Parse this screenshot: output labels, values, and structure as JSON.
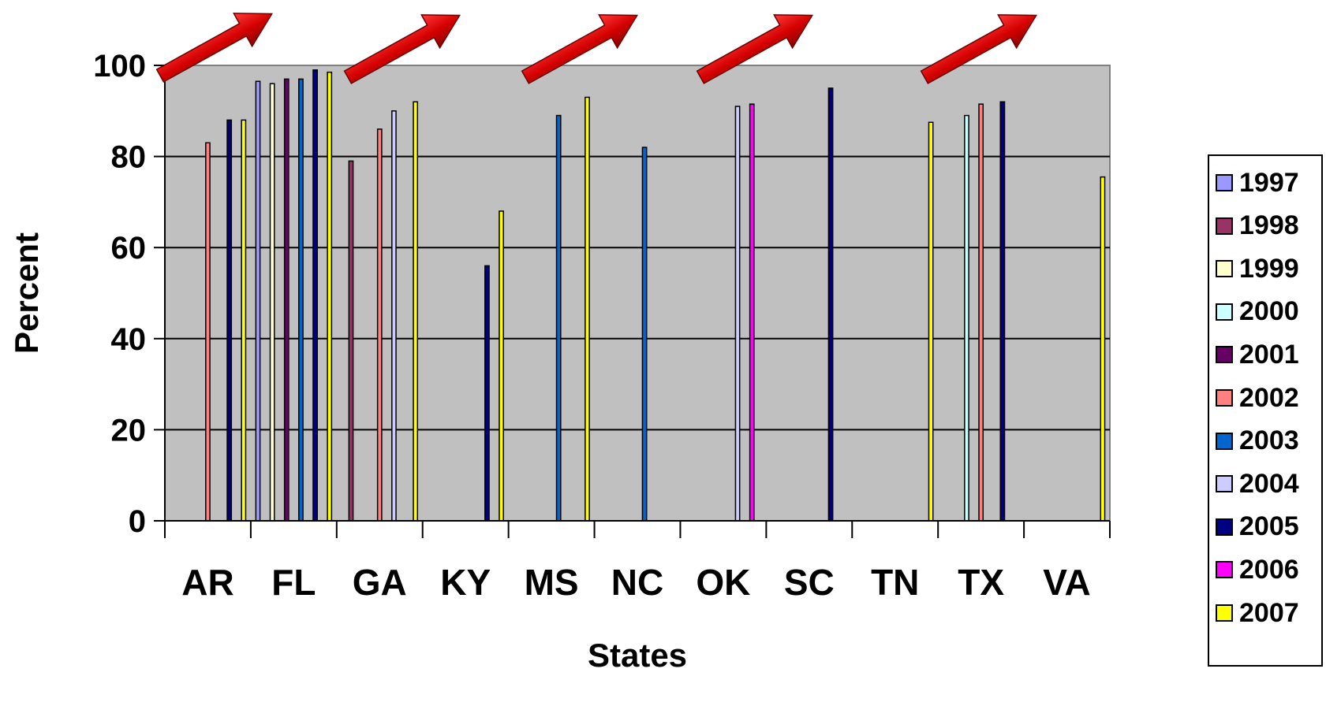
{
  "chart_data": {
    "type": "bar",
    "title": "",
    "xlabel": "States",
    "ylabel": "Percent",
    "ylim": [
      0,
      100
    ],
    "yticks": [
      "0",
      "20",
      "40",
      "60",
      "80",
      "100"
    ],
    "grid": true,
    "legend_position": "right",
    "categories": [
      "AR",
      "FL",
      "GA",
      "KY",
      "MS",
      "NC",
      "OK",
      "SC",
      "TN",
      "TX",
      "VA"
    ],
    "series": [
      {
        "name": "1997",
        "color": "#9999FF",
        "values": [
          null,
          96.5,
          null,
          null,
          null,
          null,
          null,
          null,
          null,
          null,
          null
        ]
      },
      {
        "name": "1998",
        "color": "#993366",
        "values": [
          null,
          null,
          79,
          null,
          null,
          null,
          null,
          null,
          null,
          null,
          null
        ]
      },
      {
        "name": "1999",
        "color": "#FFFFCC",
        "values": [
          null,
          96,
          null,
          null,
          null,
          null,
          null,
          null,
          null,
          null,
          null
        ]
      },
      {
        "name": "2000",
        "color": "#CCFFFF",
        "values": [
          null,
          null,
          null,
          null,
          null,
          null,
          null,
          null,
          null,
          89,
          null
        ]
      },
      {
        "name": "2001",
        "color": "#660066",
        "values": [
          null,
          97,
          null,
          null,
          null,
          null,
          null,
          null,
          null,
          null,
          null
        ]
      },
      {
        "name": "2002",
        "color": "#FF8080",
        "values": [
          83,
          null,
          86,
          null,
          null,
          null,
          null,
          null,
          null,
          91.5,
          null
        ]
      },
      {
        "name": "2003",
        "color": "#0066CC",
        "values": [
          null,
          97,
          null,
          null,
          89,
          82,
          null,
          null,
          null,
          null,
          null
        ]
      },
      {
        "name": "2004",
        "color": "#CCCCFF",
        "values": [
          null,
          null,
          90,
          null,
          null,
          null,
          91,
          null,
          null,
          null,
          null
        ]
      },
      {
        "name": "2005",
        "color": "#000080",
        "values": [
          88,
          99,
          null,
          56,
          null,
          null,
          null,
          95,
          null,
          92,
          null
        ]
      },
      {
        "name": "2006",
        "color": "#FF00FF",
        "values": [
          null,
          null,
          null,
          null,
          null,
          null,
          91.5,
          null,
          null,
          null,
          null
        ]
      },
      {
        "name": "2007",
        "color": "#FFFF00",
        "values": [
          88,
          98.5,
          92,
          68,
          93,
          null,
          null,
          null,
          87.5,
          null,
          75.5
        ]
      }
    ],
    "annotations": {
      "arrow_count": 5,
      "arrow_color": "#CC0000"
    }
  }
}
